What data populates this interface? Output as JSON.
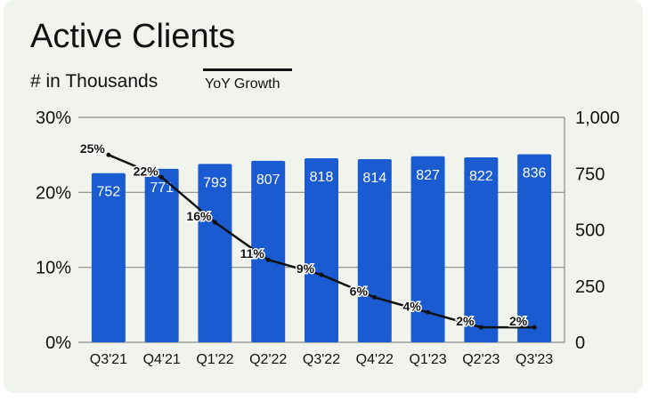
{
  "chart_data": {
    "type": "bar",
    "title": "Active Clients",
    "subtitle": "# in Thousands",
    "categories": [
      "Q3'21",
      "Q4'21",
      "Q1'22",
      "Q2'22",
      "Q3'22",
      "Q4'22",
      "Q1'23",
      "Q2'23",
      "Q3'23"
    ],
    "series": [
      {
        "type": "bar",
        "axis": "right",
        "values": [
          752,
          771,
          793,
          807,
          818,
          814,
          827,
          822,
          836
        ],
        "labels": [
          "752",
          "771",
          "793",
          "807",
          "818",
          "814",
          "827",
          "822",
          "836"
        ],
        "color": "#1a5bd1"
      },
      {
        "name": "YoY Growth",
        "type": "line",
        "axis": "left",
        "values": [
          25,
          22,
          16,
          11,
          9,
          6,
          4,
          2,
          2
        ],
        "labels": [
          "25%",
          "22%",
          "16%",
          "11%",
          "9%",
          "6%",
          "4%",
          "2%",
          "2%"
        ],
        "color": "#111111"
      }
    ],
    "y_left": {
      "ylim": [
        0,
        30
      ],
      "ticks": [
        "0%",
        "10%",
        "20%",
        "30%"
      ]
    },
    "y_right": {
      "ylim": [
        0,
        1000
      ],
      "ticks": [
        "0",
        "250",
        "500",
        "750",
        "1,000"
      ]
    },
    "grid": true,
    "legend": "top-left"
  },
  "colors": {
    "bar": "#1a5bd1",
    "line": "#111111",
    "background": "#f0f4ed",
    "grid": "#8a8a8a"
  }
}
